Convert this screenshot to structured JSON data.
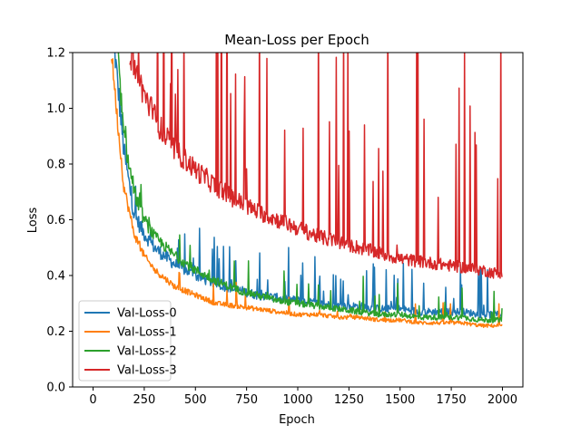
{
  "chart_data": {
    "type": "line",
    "title": "Mean-Loss per Epoch",
    "xlabel": "Epoch",
    "ylabel": "Loss",
    "xlim": [
      -100,
      2100
    ],
    "ylim": [
      0.0,
      1.2
    ],
    "xticks": [
      0,
      250,
      500,
      750,
      1000,
      1250,
      1500,
      1750,
      2000
    ],
    "yticks": [
      0.0,
      0.2,
      0.4,
      0.6,
      0.8,
      1.0,
      1.2
    ],
    "xtick_labels": [
      "0",
      "250",
      "500",
      "750",
      "1000",
      "1250",
      "1500",
      "1750",
      "2000"
    ],
    "ytick_labels": [
      "0.0",
      "0.2",
      "0.4",
      "0.6",
      "0.8",
      "1.0",
      "1.2"
    ],
    "grid": false,
    "legend_position": "lower-left",
    "series": [
      {
        "name": "Val-Loss-0",
        "color": "#1f77b4",
        "x": [
          100,
          150,
          200,
          250,
          300,
          400,
          500,
          600,
          700,
          800,
          900,
          1000,
          1100,
          1200,
          1300,
          1400,
          1500,
          1600,
          1700,
          1800,
          1900,
          2000
        ],
        "y": [
          1.25,
          0.85,
          0.62,
          0.55,
          0.5,
          0.44,
          0.4,
          0.37,
          0.35,
          0.33,
          0.32,
          0.31,
          0.3,
          0.29,
          0.29,
          0.28,
          0.28,
          0.27,
          0.27,
          0.27,
          0.26,
          0.26
        ]
      },
      {
        "name": "Val-Loss-1",
        "color": "#ff7f0e",
        "x": [
          90,
          120,
          150,
          200,
          250,
          300,
          400,
          500,
          600,
          700,
          800,
          900,
          1000,
          1100,
          1200,
          1300,
          1400,
          1500,
          1600,
          1700,
          1800,
          1900,
          2000
        ],
        "y": [
          1.2,
          0.95,
          0.72,
          0.55,
          0.47,
          0.42,
          0.36,
          0.33,
          0.3,
          0.29,
          0.28,
          0.27,
          0.26,
          0.26,
          0.25,
          0.25,
          0.24,
          0.24,
          0.23,
          0.23,
          0.23,
          0.22,
          0.22
        ]
      },
      {
        "name": "Val-Loss-2",
        "color": "#2ca02c",
        "x": [
          120,
          150,
          200,
          250,
          300,
          400,
          500,
          600,
          700,
          800,
          900,
          1000,
          1100,
          1200,
          1300,
          1400,
          1500,
          1600,
          1700,
          1800,
          1900,
          2000
        ],
        "y": [
          1.2,
          0.9,
          0.7,
          0.6,
          0.54,
          0.47,
          0.42,
          0.38,
          0.35,
          0.33,
          0.31,
          0.3,
          0.29,
          0.28,
          0.27,
          0.26,
          0.26,
          0.25,
          0.25,
          0.25,
          0.24,
          0.24
        ]
      },
      {
        "name": "Val-Loss-3",
        "color": "#d62728",
        "x": [
          180,
          200,
          250,
          300,
          350,
          400,
          500,
          600,
          700,
          800,
          900,
          1000,
          1100,
          1200,
          1300,
          1400,
          1500,
          1600,
          1700,
          1800,
          1900,
          1950,
          2000
        ],
        "y": [
          1.2,
          1.15,
          1.05,
          0.97,
          0.9,
          0.85,
          0.78,
          0.72,
          0.67,
          0.63,
          0.6,
          0.57,
          0.54,
          0.52,
          0.5,
          0.48,
          0.46,
          0.45,
          0.44,
          0.43,
          0.42,
          0.41,
          0.41
        ]
      }
    ]
  }
}
